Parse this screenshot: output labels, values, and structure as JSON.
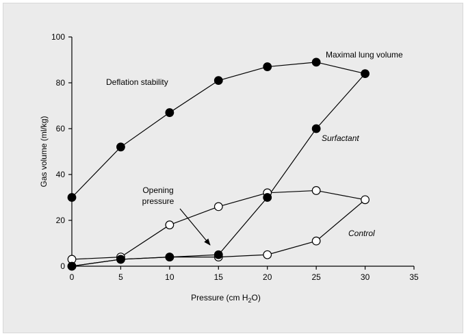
{
  "chart_data": {
    "type": "line",
    "xlabel": "Pressure (cm H2O)",
    "xlabel_main": "Pressure (cm H",
    "xlabel_sub": "2",
    "xlabel_end": "O)",
    "ylabel": "Gas volume (ml/kg)",
    "xlim": [
      0,
      35
    ],
    "ylim": [
      0,
      100
    ],
    "xticks": [
      0,
      5,
      10,
      15,
      20,
      25,
      30,
      35
    ],
    "yticks": [
      0,
      20,
      40,
      60,
      80,
      100
    ],
    "grid": false,
    "series": [
      {
        "name": "Surfactant",
        "marker": "filled-circle",
        "x": [
          0,
          5,
          10,
          15,
          20,
          25,
          30,
          25,
          20,
          15,
          10,
          5,
          0
        ],
        "y": [
          0,
          3,
          4,
          5,
          30,
          60,
          84,
          89,
          87,
          81,
          67,
          52,
          30
        ]
      },
      {
        "name": "Control",
        "marker": "open-circle",
        "x": [
          0,
          5,
          10,
          15,
          20,
          25,
          30,
          25,
          20,
          15,
          10,
          5,
          0
        ],
        "y": [
          0,
          3,
          4,
          4,
          5,
          11,
          29,
          33,
          32,
          26,
          18,
          4,
          3
        ]
      }
    ],
    "annotations": {
      "maximal_lung_volume": "Maximal lung volume",
      "deflation_stability": "Deflation stability",
      "opening_line1": "Opening",
      "opening_line2": "pressure",
      "surfactant": "Surfactant",
      "control": "Control"
    },
    "colors": {
      "line": "#000000",
      "filled_marker": "#000000",
      "open_marker_fill": "#ffffff"
    }
  }
}
